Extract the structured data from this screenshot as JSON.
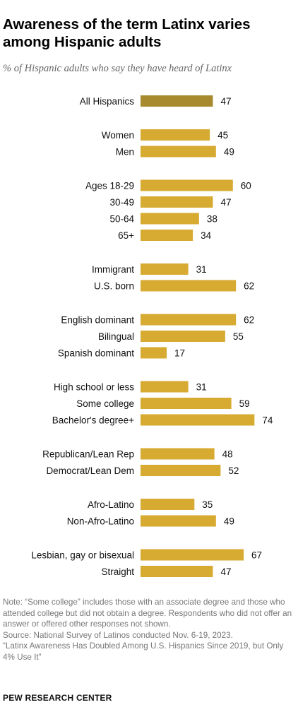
{
  "title": "Awareness of the term Latinx varies among Hispanic adults",
  "subtitle": "% of Hispanic adults who say they have heard of Latinx",
  "chart_data": {
    "type": "bar",
    "orientation": "horizontal",
    "bar_color": "#d7aa31",
    "highlight_color": "#a88a2e",
    "xlim": [
      0,
      100
    ],
    "groups": [
      {
        "categories": [
          "All Hispanics"
        ],
        "values": [
          47
        ],
        "highlight": true
      },
      {
        "categories": [
          "Women",
          "Men"
        ],
        "values": [
          45,
          49
        ]
      },
      {
        "categories": [
          "Ages 18-29",
          "30-49",
          "50-64",
          "65+"
        ],
        "values": [
          60,
          47,
          38,
          34
        ]
      },
      {
        "categories": [
          "Immigrant",
          "U.S. born"
        ],
        "values": [
          31,
          62
        ]
      },
      {
        "categories": [
          "English dominant",
          "Bilingual",
          "Spanish dominant"
        ],
        "values": [
          62,
          55,
          17
        ]
      },
      {
        "categories": [
          "High school or less",
          "Some college",
          "Bachelor's degree+"
        ],
        "values": [
          31,
          59,
          74
        ]
      },
      {
        "categories": [
          "Republican/Lean Rep",
          "Democrat/Lean Dem"
        ],
        "values": [
          48,
          52
        ]
      },
      {
        "categories": [
          "Afro-Latino",
          "Non-Afro-Latino"
        ],
        "values": [
          35,
          49
        ]
      },
      {
        "categories": [
          "Lesbian, gay or bisexual",
          "Straight"
        ],
        "values": [
          67,
          47
        ]
      }
    ]
  },
  "notes": {
    "note": "Note: “Some college” includes those with an associate degree and those who attended college but did not obtain a degree. Respondents who did not offer an answer or offered other responses not shown.",
    "source": "Source: National Survey of Latinos conducted Nov. 6-19, 2023.",
    "report": "“Latinx Awareness Has Doubled Among U.S. Hispanics Since 2019, but Only 4% Use It”"
  },
  "brand": "PEW RESEARCH CENTER"
}
